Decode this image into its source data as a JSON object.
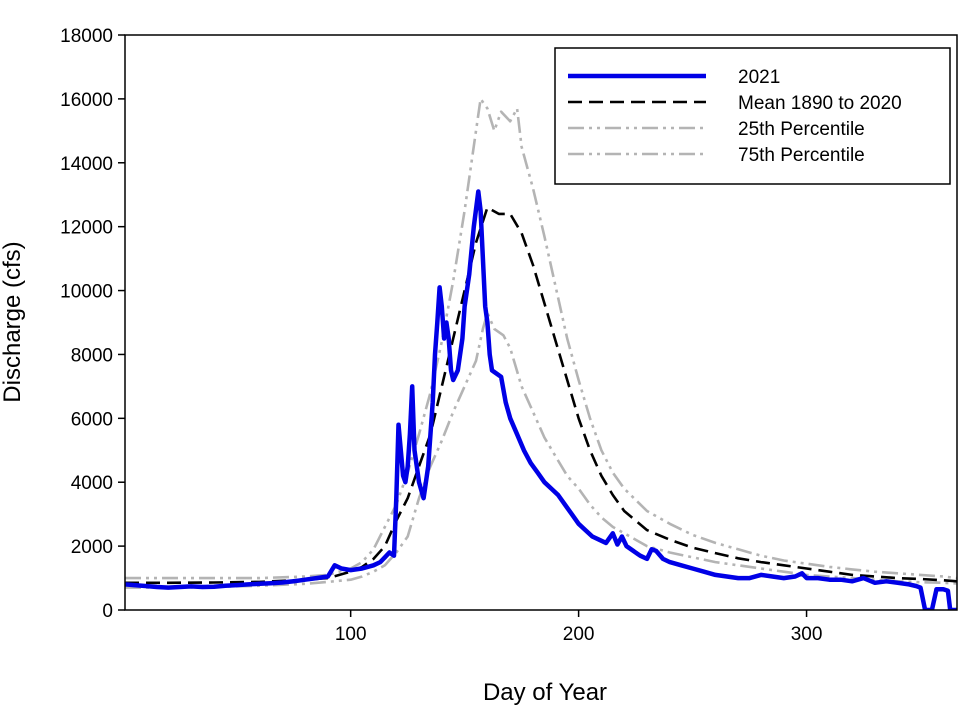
{
  "chart_data": {
    "type": "line",
    "title": "",
    "xlabel": "Day of Year",
    "ylabel": "Discharge (cfs)",
    "xlim": [
      1,
      366
    ],
    "ylim": [
      0,
      18000
    ],
    "grid": false,
    "legend_position": "top-right",
    "x_ticks": [
      100,
      200,
      300
    ],
    "y_ticks": [
      0,
      2000,
      4000,
      6000,
      8000,
      10000,
      12000,
      14000,
      16000,
      18000
    ],
    "series": [
      {
        "name": "2021",
        "color": "#0000e6",
        "style": "solid",
        "points": [
          [
            1,
            800
          ],
          [
            5,
            780
          ],
          [
            10,
            750
          ],
          [
            15,
            720
          ],
          [
            20,
            700
          ],
          [
            25,
            720
          ],
          [
            30,
            740
          ],
          [
            35,
            720
          ],
          [
            40,
            730
          ],
          [
            45,
            760
          ],
          [
            50,
            780
          ],
          [
            55,
            800
          ],
          [
            60,
            820
          ],
          [
            65,
            840
          ],
          [
            70,
            860
          ],
          [
            75,
            900
          ],
          [
            80,
            950
          ],
          [
            85,
            1000
          ],
          [
            90,
            1050
          ],
          [
            93,
            1400
          ],
          [
            96,
            1300
          ],
          [
            100,
            1250
          ],
          [
            105,
            1300
          ],
          [
            110,
            1400
          ],
          [
            113,
            1500
          ],
          [
            115,
            1650
          ],
          [
            117,
            1800
          ],
          [
            119,
            1700
          ],
          [
            120,
            3500
          ],
          [
            121,
            5800
          ],
          [
            122,
            5000
          ],
          [
            123,
            4200
          ],
          [
            124,
            4000
          ],
          [
            125,
            4500
          ],
          [
            126,
            5500
          ],
          [
            127,
            7000
          ],
          [
            128,
            5000
          ],
          [
            130,
            4000
          ],
          [
            132,
            3500
          ],
          [
            134,
            4500
          ],
          [
            136,
            6500
          ],
          [
            137,
            8000
          ],
          [
            138,
            9000
          ],
          [
            139,
            10100
          ],
          [
            140,
            9500
          ],
          [
            141,
            8500
          ],
          [
            142,
            9000
          ],
          [
            143,
            8500
          ],
          [
            144,
            7500
          ],
          [
            145,
            7200
          ],
          [
            147,
            7500
          ],
          [
            149,
            8500
          ],
          [
            150,
            9500
          ],
          [
            152,
            10500
          ],
          [
            154,
            12000
          ],
          [
            156,
            13100
          ],
          [
            157,
            12500
          ],
          [
            158,
            11000
          ],
          [
            159,
            9500
          ],
          [
            160,
            9000
          ],
          [
            161,
            8000
          ],
          [
            162,
            7500
          ],
          [
            164,
            7400
          ],
          [
            166,
            7300
          ],
          [
            168,
            6500
          ],
          [
            170,
            6000
          ],
          [
            173,
            5500
          ],
          [
            176,
            5000
          ],
          [
            179,
            4600
          ],
          [
            182,
            4300
          ],
          [
            185,
            4000
          ],
          [
            188,
            3800
          ],
          [
            191,
            3600
          ],
          [
            194,
            3300
          ],
          [
            197,
            3000
          ],
          [
            200,
            2700
          ],
          [
            203,
            2500
          ],
          [
            206,
            2300
          ],
          [
            209,
            2200
          ],
          [
            212,
            2100
          ],
          [
            215,
            2400
          ],
          [
            217,
            2050
          ],
          [
            219,
            2300
          ],
          [
            221,
            2000
          ],
          [
            224,
            1850
          ],
          [
            227,
            1700
          ],
          [
            230,
            1600
          ],
          [
            232,
            1900
          ],
          [
            234,
            1850
          ],
          [
            237,
            1600
          ],
          [
            240,
            1500
          ],
          [
            245,
            1400
          ],
          [
            250,
            1300
          ],
          [
            255,
            1200
          ],
          [
            260,
            1100
          ],
          [
            265,
            1050
          ],
          [
            270,
            1000
          ],
          [
            275,
            1000
          ],
          [
            280,
            1100
          ],
          [
            285,
            1050
          ],
          [
            290,
            1000
          ],
          [
            295,
            1050
          ],
          [
            298,
            1150
          ],
          [
            300,
            1000
          ],
          [
            305,
            1000
          ],
          [
            310,
            950
          ],
          [
            315,
            950
          ],
          [
            320,
            900
          ],
          [
            325,
            1000
          ],
          [
            330,
            850
          ],
          [
            335,
            900
          ],
          [
            340,
            850
          ],
          [
            345,
            800
          ],
          [
            348,
            750
          ],
          [
            350,
            700
          ],
          [
            352,
            0
          ],
          [
            355,
            0
          ],
          [
            357,
            650
          ],
          [
            360,
            650
          ],
          [
            362,
            600
          ],
          [
            363,
            0
          ],
          [
            366,
            0
          ]
        ]
      },
      {
        "name": "Mean 1890 to 2020",
        "color": "#000000",
        "style": "dashed",
        "points": [
          [
            1,
            850
          ],
          [
            20,
            850
          ],
          [
            40,
            860
          ],
          [
            60,
            880
          ],
          [
            80,
            950
          ],
          [
            90,
            1000
          ],
          [
            100,
            1200
          ],
          [
            105,
            1350
          ],
          [
            110,
            1600
          ],
          [
            115,
            2000
          ],
          [
            120,
            2800
          ],
          [
            125,
            3500
          ],
          [
            130,
            4500
          ],
          [
            135,
            5500
          ],
          [
            140,
            7000
          ],
          [
            145,
            8500
          ],
          [
            150,
            10000
          ],
          [
            155,
            11500
          ],
          [
            160,
            12600
          ],
          [
            165,
            12400
          ],
          [
            170,
            12400
          ],
          [
            175,
            11800
          ],
          [
            180,
            10800
          ],
          [
            185,
            9600
          ],
          [
            190,
            8400
          ],
          [
            195,
            7200
          ],
          [
            200,
            6000
          ],
          [
            205,
            5000
          ],
          [
            210,
            4200
          ],
          [
            215,
            3600
          ],
          [
            220,
            3100
          ],
          [
            225,
            2800
          ],
          [
            230,
            2500
          ],
          [
            240,
            2200
          ],
          [
            250,
            1950
          ],
          [
            260,
            1780
          ],
          [
            270,
            1620
          ],
          [
            280,
            1500
          ],
          [
            290,
            1400
          ],
          [
            300,
            1300
          ],
          [
            310,
            1200
          ],
          [
            320,
            1100
          ],
          [
            330,
            1050
          ],
          [
            340,
            1000
          ],
          [
            350,
            970
          ],
          [
            360,
            930
          ],
          [
            366,
            900
          ]
        ]
      },
      {
        "name": "25th Percentile",
        "color": "#b4b4b4",
        "style": "dash-dot-dot",
        "points": [
          [
            1,
            700
          ],
          [
            20,
            700
          ],
          [
            40,
            720
          ],
          [
            60,
            760
          ],
          [
            80,
            820
          ],
          [
            90,
            880
          ],
          [
            100,
            950
          ],
          [
            105,
            1050
          ],
          [
            110,
            1200
          ],
          [
            115,
            1400
          ],
          [
            120,
            1800
          ],
          [
            125,
            2300
          ],
          [
            130,
            3500
          ],
          [
            135,
            4500
          ],
          [
            140,
            5300
          ],
          [
            145,
            6200
          ],
          [
            150,
            7000
          ],
          [
            155,
            7800
          ],
          [
            158,
            8800
          ],
          [
            160,
            9300
          ],
          [
            163,
            8800
          ],
          [
            167,
            8600
          ],
          [
            170,
            8200
          ],
          [
            175,
            7000
          ],
          [
            180,
            6200
          ],
          [
            185,
            5400
          ],
          [
            190,
            4800
          ],
          [
            195,
            4200
          ],
          [
            200,
            3800
          ],
          [
            205,
            3300
          ],
          [
            210,
            2900
          ],
          [
            215,
            2600
          ],
          [
            220,
            2400
          ],
          [
            230,
            2000
          ],
          [
            240,
            1800
          ],
          [
            250,
            1650
          ],
          [
            260,
            1500
          ],
          [
            270,
            1400
          ],
          [
            280,
            1300
          ],
          [
            290,
            1200
          ],
          [
            300,
            1100
          ],
          [
            310,
            1050
          ],
          [
            320,
            1000
          ],
          [
            330,
            950
          ],
          [
            340,
            900
          ],
          [
            350,
            870
          ],
          [
            360,
            850
          ],
          [
            366,
            830
          ]
        ]
      },
      {
        "name": "75th Percentile",
        "color": "#b4b4b4",
        "style": "dash-dot-dot",
        "points": [
          [
            1,
            1000
          ],
          [
            20,
            1000
          ],
          [
            40,
            1000
          ],
          [
            60,
            1000
          ],
          [
            80,
            1050
          ],
          [
            90,
            1100
          ],
          [
            100,
            1300
          ],
          [
            105,
            1500
          ],
          [
            110,
            1900
          ],
          [
            115,
            2600
          ],
          [
            120,
            3300
          ],
          [
            125,
            4300
          ],
          [
            130,
            5500
          ],
          [
            135,
            6800
          ],
          [
            140,
            8400
          ],
          [
            145,
            10300
          ],
          [
            150,
            12500
          ],
          [
            155,
            15000
          ],
          [
            157,
            16000
          ],
          [
            160,
            15700
          ],
          [
            163,
            15000
          ],
          [
            166,
            15600
          ],
          [
            170,
            15300
          ],
          [
            173,
            15700
          ],
          [
            175,
            14500
          ],
          [
            180,
            13200
          ],
          [
            185,
            11700
          ],
          [
            190,
            10100
          ],
          [
            195,
            8500
          ],
          [
            200,
            7200
          ],
          [
            205,
            6000
          ],
          [
            210,
            5000
          ],
          [
            215,
            4300
          ],
          [
            220,
            3800
          ],
          [
            230,
            3100
          ],
          [
            240,
            2700
          ],
          [
            250,
            2350
          ],
          [
            260,
            2100
          ],
          [
            270,
            1900
          ],
          [
            280,
            1700
          ],
          [
            290,
            1550
          ],
          [
            300,
            1450
          ],
          [
            310,
            1350
          ],
          [
            320,
            1270
          ],
          [
            330,
            1200
          ],
          [
            340,
            1150
          ],
          [
            350,
            1100
          ],
          [
            360,
            1050
          ],
          [
            366,
            1000
          ]
        ]
      }
    ]
  }
}
